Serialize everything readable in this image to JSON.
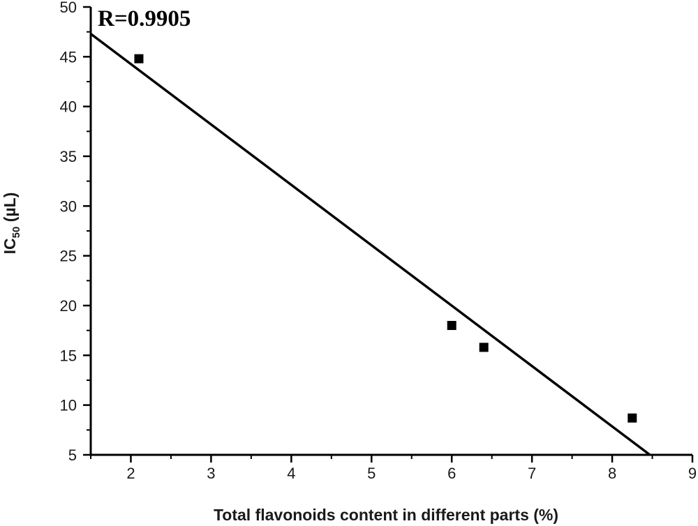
{
  "chart_data": {
    "type": "scatter",
    "title": "",
    "annotation": "R=0.9905",
    "xlabel": "Total flavonoids content in different parts (%)",
    "ylabel": {
      "prefix": "IC",
      "subscript": "50",
      "suffix": " (µL)"
    },
    "xlim": [
      1.5,
      9
    ],
    "ylim": [
      5,
      50
    ],
    "xticks": [
      2,
      3,
      4,
      5,
      6,
      7,
      8,
      9
    ],
    "yticks": [
      5,
      10,
      15,
      20,
      25,
      30,
      35,
      40,
      45,
      50
    ],
    "grid": false,
    "legend": "none",
    "series": [
      {
        "type": "scatter",
        "marker": "square",
        "color": "#000000",
        "points": [
          {
            "x": 2.1,
            "y": 44.8
          },
          {
            "x": 6.0,
            "y": 18.0
          },
          {
            "x": 6.4,
            "y": 15.8
          },
          {
            "x": 8.25,
            "y": 8.7
          }
        ]
      },
      {
        "type": "line",
        "color": "#000000",
        "role": "linear fit",
        "points": [
          {
            "x": 1.5,
            "y": 47.3
          },
          {
            "x": 8.47,
            "y": 5.0
          }
        ]
      }
    ]
  }
}
